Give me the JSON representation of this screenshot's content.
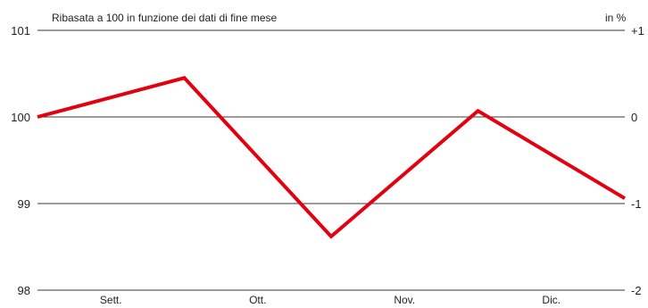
{
  "chart_data": {
    "type": "line",
    "subtitle": "Ribasata a 100 in funzione dei dati di fine mese",
    "right_axis_unit": "in %",
    "categories": [
      "Sett.",
      "Ott.",
      "Nov.",
      "Dic."
    ],
    "x": [
      0,
      1,
      2,
      3,
      4
    ],
    "series": [
      {
        "values": [
          100.0,
          100.45,
          98.62,
          100.07,
          99.06
        ],
        "color": "#e3000f"
      }
    ],
    "ylim": [
      98,
      101
    ],
    "yticks_left": [
      "101",
      "100",
      "99",
      "98"
    ],
    "yticks_right": [
      "+1",
      "0",
      "-1",
      "-2"
    ],
    "grid": "horizontal"
  }
}
